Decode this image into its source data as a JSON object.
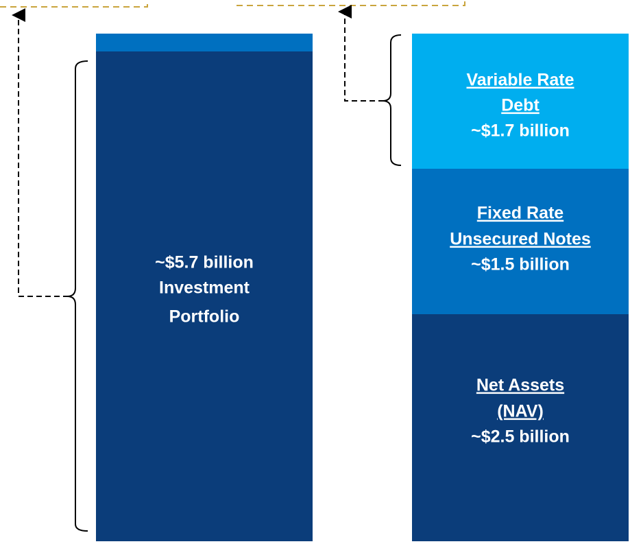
{
  "left_bar": {
    "amount": "~$5.7 billion",
    "lines": [
      "Investment",
      "Portfolio"
    ]
  },
  "right_bar": {
    "segments": [
      {
        "title_lines": [
          "Variable Rate",
          "Debt"
        ],
        "amount": "~$1.7 billion"
      },
      {
        "title_lines": [
          "Fixed Rate",
          "Unsecured Notes"
        ],
        "amount": "~$1.5 billion"
      },
      {
        "title_lines": [
          "Net Assets",
          "(NAV)"
        ],
        "amount": "~$2.5 billion"
      }
    ]
  }
}
